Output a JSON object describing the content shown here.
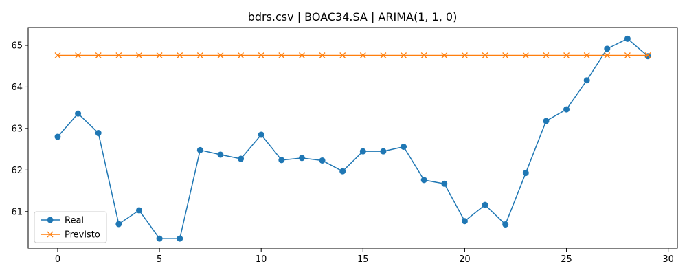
{
  "chart_data": {
    "type": "line",
    "title": "bdrs.csv | BOAC34.SA | ARIMA(1, 1, 0)",
    "xlabel": "",
    "ylabel": "",
    "x": [
      0,
      1,
      2,
      3,
      4,
      5,
      6,
      7,
      8,
      9,
      10,
      11,
      12,
      13,
      14,
      15,
      16,
      17,
      18,
      19,
      20,
      21,
      22,
      23,
      24,
      25,
      26,
      27,
      28,
      29
    ],
    "xlim": [
      -1.45,
      30.45
    ],
    "ylim": [
      60.12,
      65.43
    ],
    "xticks": [
      0,
      5,
      10,
      15,
      20,
      25,
      30
    ],
    "xtick_labels": [
      "0",
      "5",
      "10",
      "15",
      "20",
      "25",
      "30"
    ],
    "yticks": [
      61,
      62,
      63,
      64,
      65
    ],
    "ytick_labels": [
      "61",
      "62",
      "63",
      "64",
      "65"
    ],
    "grid": false,
    "legend_position": "lower-left",
    "series": [
      {
        "name": "Real",
        "color": "#1f77b4",
        "marker": "circle",
        "values": [
          62.8,
          63.36,
          62.89,
          60.7,
          61.03,
          60.35,
          60.35,
          62.48,
          62.37,
          62.27,
          62.85,
          62.24,
          62.29,
          62.23,
          61.97,
          62.45,
          62.45,
          62.56,
          61.76,
          61.67,
          60.77,
          61.16,
          60.69,
          61.93,
          63.18,
          63.46,
          64.16,
          64.92,
          65.16,
          64.74
        ]
      },
      {
        "name": "Previsto",
        "color": "#ff7f0e",
        "marker": "x",
        "values": [
          64.76,
          64.76,
          64.76,
          64.76,
          64.76,
          64.76,
          64.76,
          64.76,
          64.76,
          64.76,
          64.76,
          64.76,
          64.76,
          64.76,
          64.76,
          64.76,
          64.76,
          64.76,
          64.76,
          64.76,
          64.76,
          64.76,
          64.76,
          64.76,
          64.76,
          64.76,
          64.76,
          64.76,
          64.76,
          64.76
        ]
      }
    ]
  }
}
